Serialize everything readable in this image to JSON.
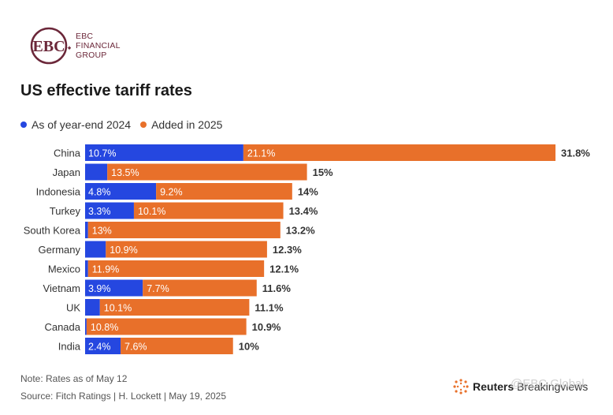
{
  "brand": {
    "logo_letters": "EBC",
    "name_line1": "EBC",
    "name_line2": "FINANCIAL",
    "name_line3": "GROUP"
  },
  "colors": {
    "base": "#2547e0",
    "added": "#e8702a",
    "brand": "#6b2739"
  },
  "chart_data": {
    "type": "bar",
    "orientation": "horizontal",
    "stacked": true,
    "title": "US effective tariff rates",
    "xlabel": "",
    "ylabel": "",
    "xlim": [
      0,
      31.8
    ],
    "legend": [
      "As of year-end 2024",
      "Added in 2025"
    ],
    "categories": [
      "China",
      "Japan",
      "Indonesia",
      "Turkey",
      "South Korea",
      "Germany",
      "Mexico",
      "Vietnam",
      "UK",
      "Canada",
      "India"
    ],
    "series": [
      {
        "name": "As of year-end 2024",
        "values": [
          10.7,
          1.5,
          4.8,
          3.3,
          0.2,
          1.4,
          0.2,
          3.9,
          1.0,
          0.1,
          2.4
        ],
        "labels": [
          "10.7%",
          "",
          "4.8%",
          "3.3%",
          "",
          "",
          "",
          "3.9%",
          "",
          "",
          "2.4%"
        ]
      },
      {
        "name": "Added in 2025",
        "values": [
          21.1,
          13.5,
          9.2,
          10.1,
          13.0,
          10.9,
          11.9,
          7.7,
          10.1,
          10.8,
          7.6
        ],
        "labels": [
          "21.1%",
          "13.5%",
          "9.2%",
          "10.1%",
          "13%",
          "10.9%",
          "11.9%",
          "7.7%",
          "10.1%",
          "10.8%",
          "7.6%"
        ]
      }
    ],
    "totals": [
      "31.8%",
      "15%",
      "14%",
      "13.4%",
      "13.2%",
      "12.3%",
      "12.1%",
      "11.6%",
      "11.1%",
      "10.9%",
      "10%"
    ]
  },
  "footer": {
    "note": "Note: Rates as of May 12",
    "source": "Source: Fitch Ratings | H. Lockett | May 19, 2025",
    "brand_bold": "Reuters",
    "brand_rest": " Breakingviews",
    "watermark": "@EBC Global"
  }
}
